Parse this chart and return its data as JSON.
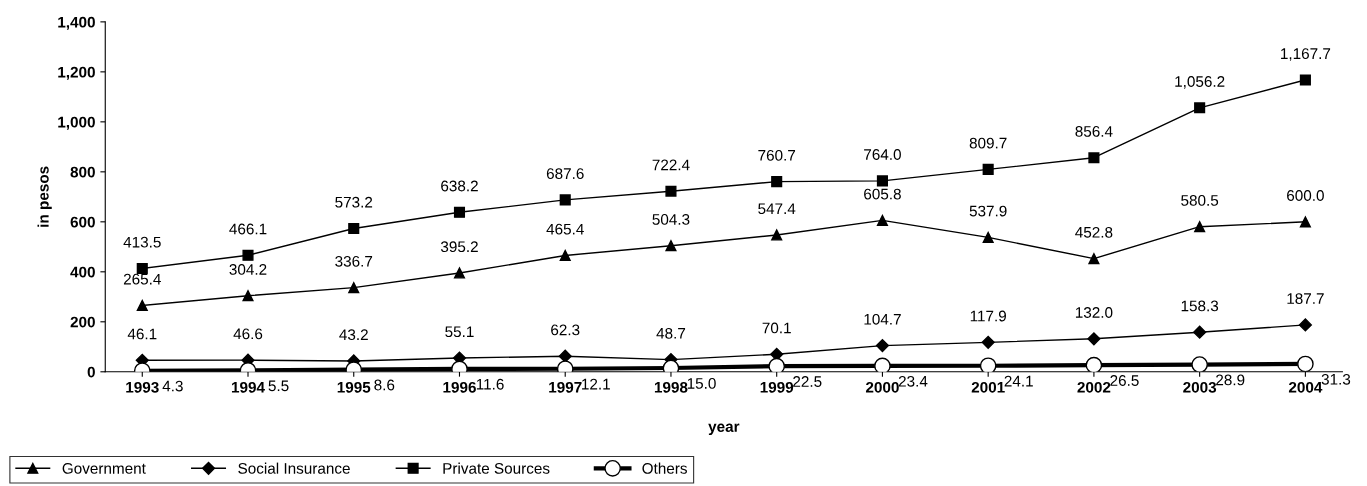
{
  "chart_data": {
    "type": "line",
    "xlabel": "year",
    "ylabel": "in pesos",
    "categories": [
      "1993",
      "1994",
      "1995",
      "1996",
      "1997",
      "1998",
      "1999",
      "2000",
      "2001",
      "2002",
      "2003",
      "2004"
    ],
    "ylim": [
      0,
      1400
    ],
    "yticks": [
      0,
      200,
      400,
      600,
      800,
      {
        "value": 1000,
        "label": "1,000"
      },
      {
        "value": 1200,
        "label": "1,200"
      },
      {
        "value": 1400,
        "label": "1,400"
      }
    ],
    "grid": false,
    "legend": "bottom left",
    "line_style": "solid",
    "series": [
      {
        "name": "Government",
        "color": "#000000",
        "marker": "triangle",
        "values": [
          265.4,
          304.2,
          336.7,
          395.2,
          465.4,
          504.3,
          547.4,
          605.8,
          537.9,
          452.8,
          580.5,
          600.0
        ],
        "value_labels": [
          "265.4",
          "304.2",
          "336.7",
          "395.2",
          "465.4",
          "504.3",
          "547.4",
          "605.8",
          "537.9",
          "452.8",
          "580.5",
          "600.0"
        ]
      },
      {
        "name": "Social Insurance",
        "color": "#000000",
        "marker": "diamond",
        "values": [
          46.1,
          46.6,
          43.2,
          55.1,
          62.3,
          48.7,
          70.1,
          104.7,
          117.9,
          132.0,
          158.3,
          187.7
        ],
        "value_labels": [
          "46.1",
          "46.6",
          "43.2",
          "55.1",
          "62.3",
          "48.7",
          "70.1",
          "104.7",
          "117.9",
          "132.0",
          "158.3",
          "187.7"
        ]
      },
      {
        "name": "Private Sources",
        "color": "#000000",
        "marker": "square",
        "values": [
          413.5,
          466.1,
          573.2,
          638.2,
          687.6,
          722.4,
          760.7,
          764.0,
          809.7,
          856.4,
          1056.2,
          1167.7
        ],
        "value_labels": [
          "413.5",
          "466.1",
          "573.2",
          "638.2",
          "687.6",
          "722.4",
          "760.7",
          "764.0",
          "809.7",
          "856.4",
          "1,056.2",
          "1,167.7"
        ]
      },
      {
        "name": "Others",
        "color": "#000000",
        "marker": "circle",
        "values": [
          4.3,
          5.5,
          8.6,
          11.6,
          12.1,
          15.0,
          22.5,
          23.4,
          24.1,
          26.5,
          28.9,
          31.3
        ],
        "value_labels": [
          "4.3",
          "5.5",
          "8.6",
          "11.6",
          "12.1",
          "15.0",
          "22.5",
          "23.4",
          "24.1",
          "26.5",
          "28.9",
          "31.3"
        ]
      }
    ]
  }
}
